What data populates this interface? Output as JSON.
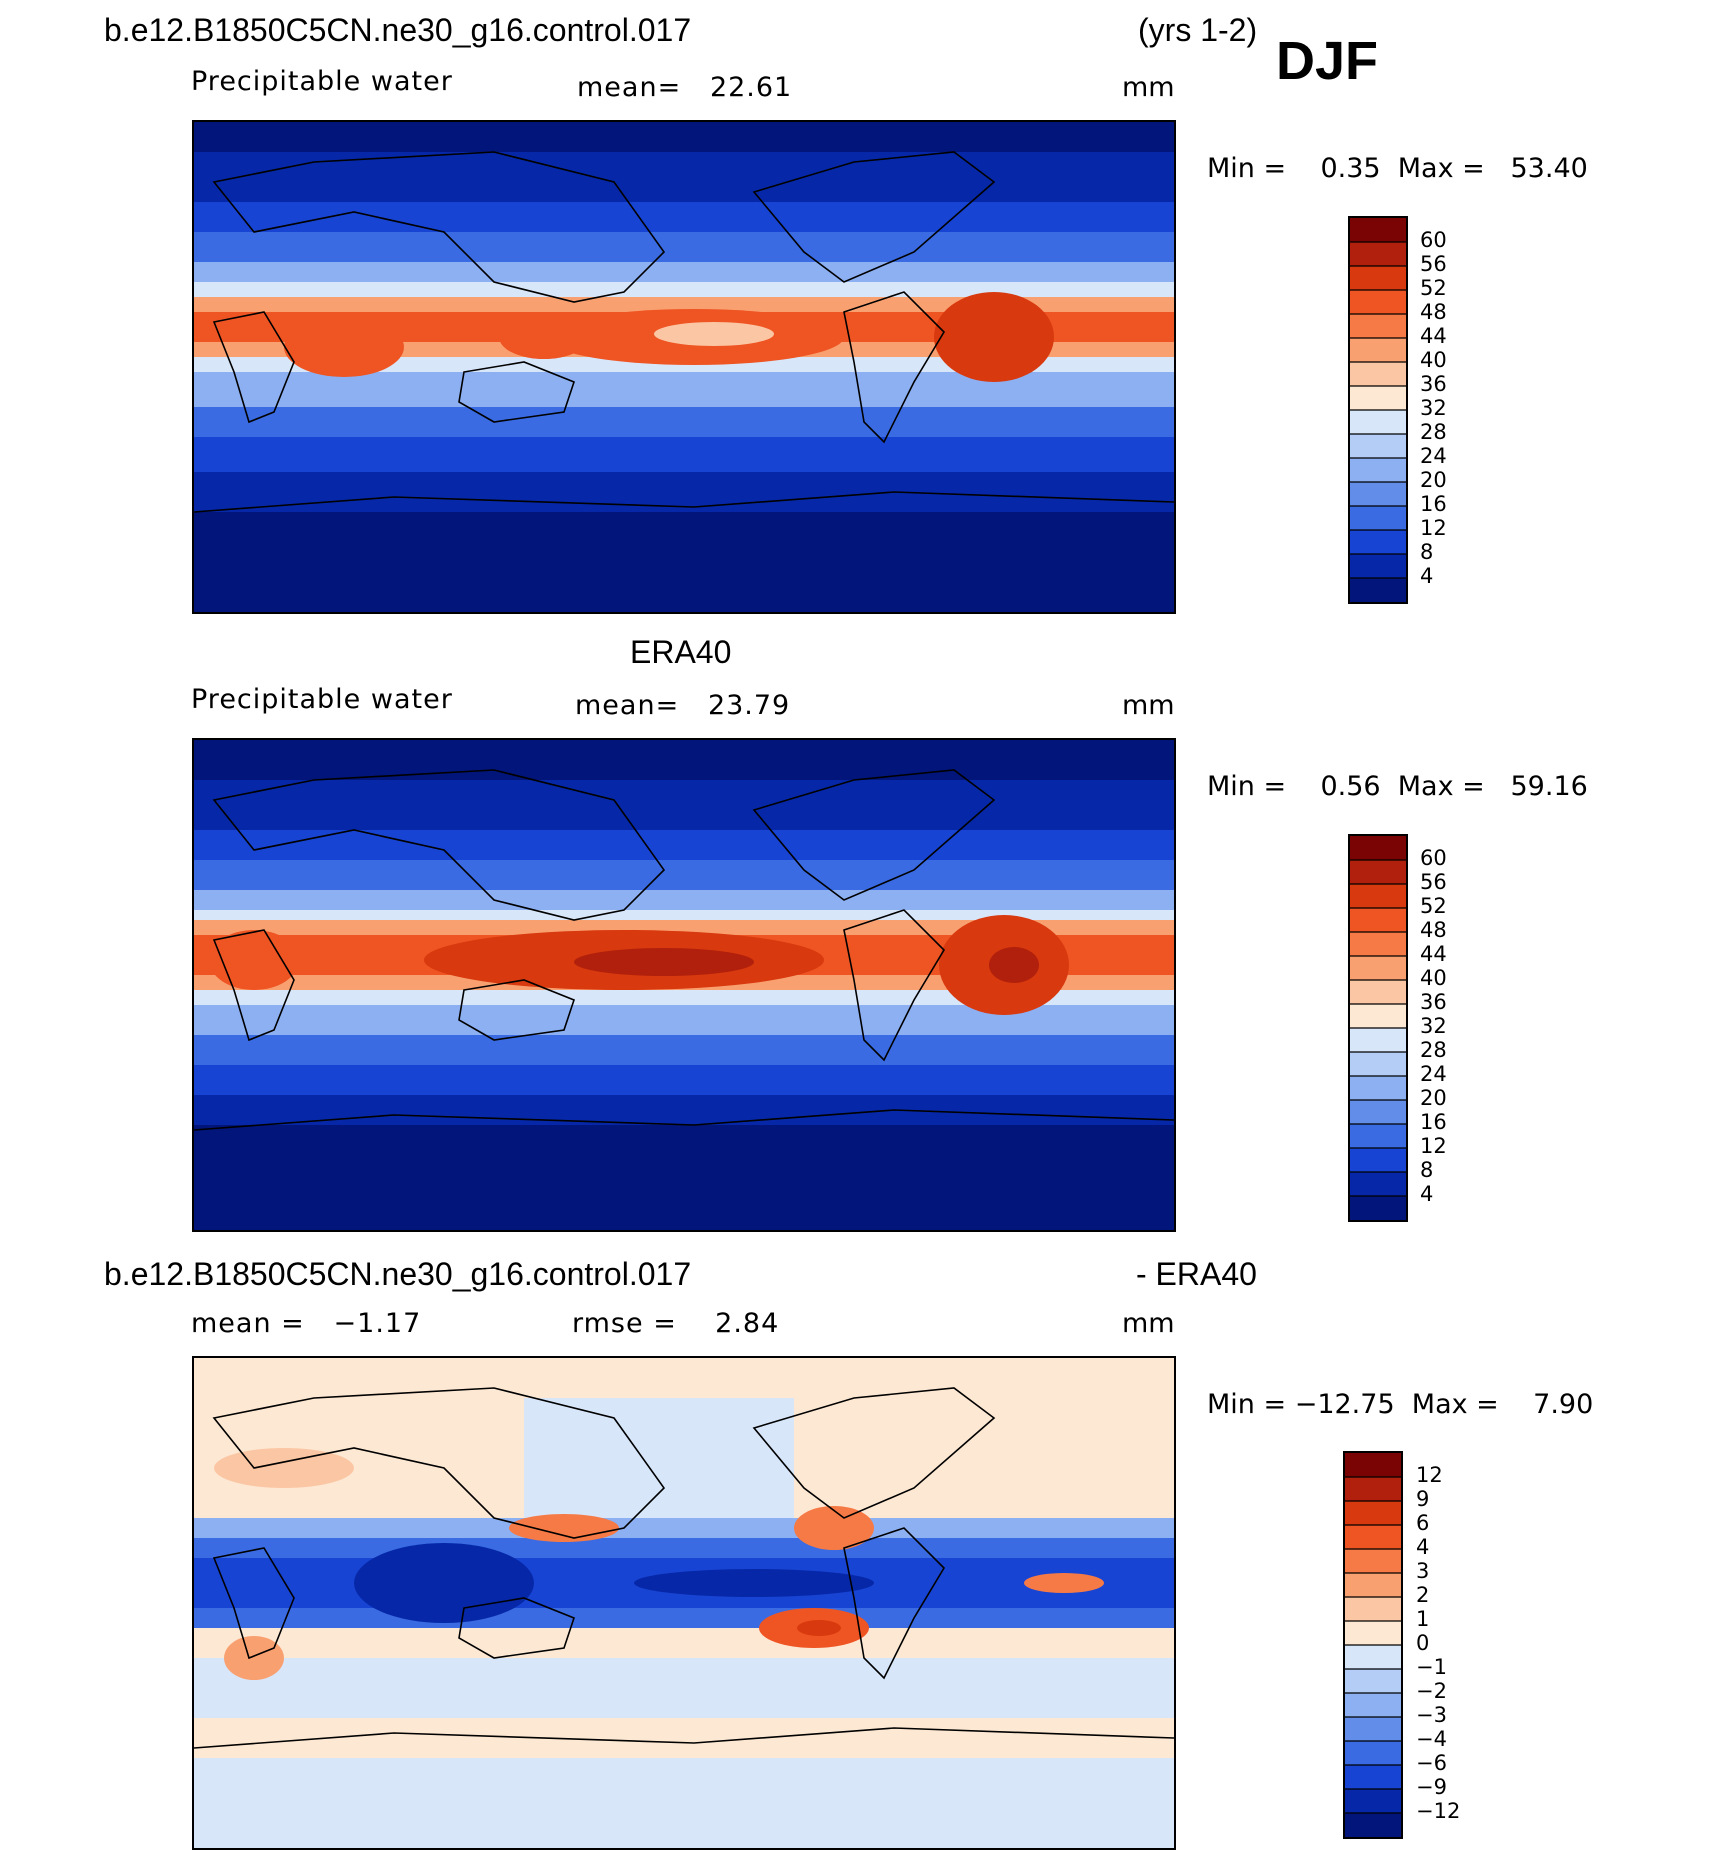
{
  "header": {
    "case_name": "b.e12.B1850C5CN.ne30_g16.control.017",
    "years": "(yrs 1-2)",
    "season": "DJF"
  },
  "panels": [
    {
      "title": "",
      "field_label": "Precipitable water",
      "stat1": "mean=   22.61",
      "stat2": "",
      "units": "mm",
      "minmax": "Min =    0.35  Max =   53.40",
      "colorbar": {
        "levels": [
          "60",
          "56",
          "52",
          "48",
          "44",
          "40",
          "36",
          "32",
          "28",
          "24",
          "20",
          "16",
          "12",
          "8",
          "4"
        ],
        "colors": [
          "#7a0403",
          "#b0200c",
          "#d8390e",
          "#ef5423",
          "#f67a45",
          "#f9a071",
          "#fbc6a3",
          "#fde8d3",
          "#d7e6f9",
          "#b3cdf6",
          "#8db0f2",
          "#628ee9",
          "#3a6be2",
          "#1844d4",
          "#0628a8",
          "#02157a"
        ]
      }
    },
    {
      "title": "ERA40",
      "field_label": "Precipitable water",
      "stat1": "mean=   23.79",
      "stat2": "",
      "units": "mm",
      "minmax": "Min =    0.56  Max =   59.16",
      "colorbar": {
        "levels": [
          "60",
          "56",
          "52",
          "48",
          "44",
          "40",
          "36",
          "32",
          "28",
          "24",
          "20",
          "16",
          "12",
          "8",
          "4"
        ],
        "colors": [
          "#7a0403",
          "#b0200c",
          "#d8390e",
          "#ef5423",
          "#f67a45",
          "#f9a071",
          "#fbc6a3",
          "#fde8d3",
          "#d7e6f9",
          "#b3cdf6",
          "#8db0f2",
          "#628ee9",
          "#3a6be2",
          "#1844d4",
          "#0628a8",
          "#02157a"
        ]
      }
    },
    {
      "title": "b.e12.B1850C5CN.ne30_g16.control.017",
      "title_suffix": "- ERA40",
      "field_label": "",
      "stat1": "mean =   −1.17",
      "stat2": "rmse =    2.84",
      "units": "mm",
      "minmax": "Min = −12.75  Max =    7.90",
      "colorbar": {
        "levels": [
          "12",
          "9",
          "6",
          "4",
          "3",
          "2",
          "1",
          "0",
          "−1",
          "−2",
          "−3",
          "−4",
          "−6",
          "−9",
          "−12"
        ],
        "colors": [
          "#7a0403",
          "#b0200c",
          "#d8390e",
          "#ef5423",
          "#f67a45",
          "#f9a071",
          "#fbc6a3",
          "#fde8d3",
          "#d7e6f9",
          "#b3cdf6",
          "#8db0f2",
          "#628ee9",
          "#3a6be2",
          "#1844d4",
          "#0628a8",
          "#02157a"
        ]
      }
    }
  ]
}
